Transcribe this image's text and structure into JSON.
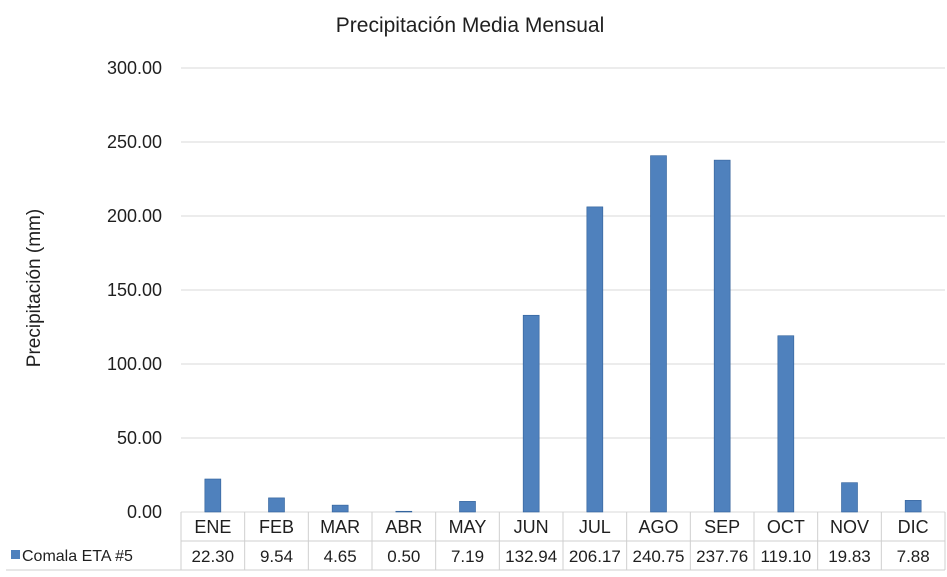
{
  "chart_data": {
    "type": "bar",
    "title": "Precipitación Media Mensual",
    "ylabel": "Precipitación (mm)",
    "xlabel": "",
    "ylim": [
      0,
      300
    ],
    "yticks": [
      "0.00",
      "50.00",
      "100.00",
      "150.00",
      "200.00",
      "250.00",
      "300.00"
    ],
    "grid": true,
    "categories": [
      "ENE",
      "FEB",
      "MAR",
      "ABR",
      "MAY",
      "JUN",
      "JUL",
      "AGO",
      "SEP",
      "OCT",
      "NOV",
      "DIC"
    ],
    "series": [
      {
        "name": "Comala ETA #5",
        "values": [
          22.3,
          9.54,
          4.65,
          0.5,
          7.19,
          132.94,
          206.17,
          240.75,
          237.76,
          119.1,
          19.83,
          7.88
        ],
        "labels": [
          "22.30",
          "9.54",
          "4.65",
          "0.50",
          "7.19",
          "132.94",
          "206.17",
          "240.75",
          "237.76",
          "119.10",
          "19.83",
          "7.88"
        ],
        "color": "#4f81bd"
      }
    ],
    "legend": "data-table-bottom-left"
  }
}
